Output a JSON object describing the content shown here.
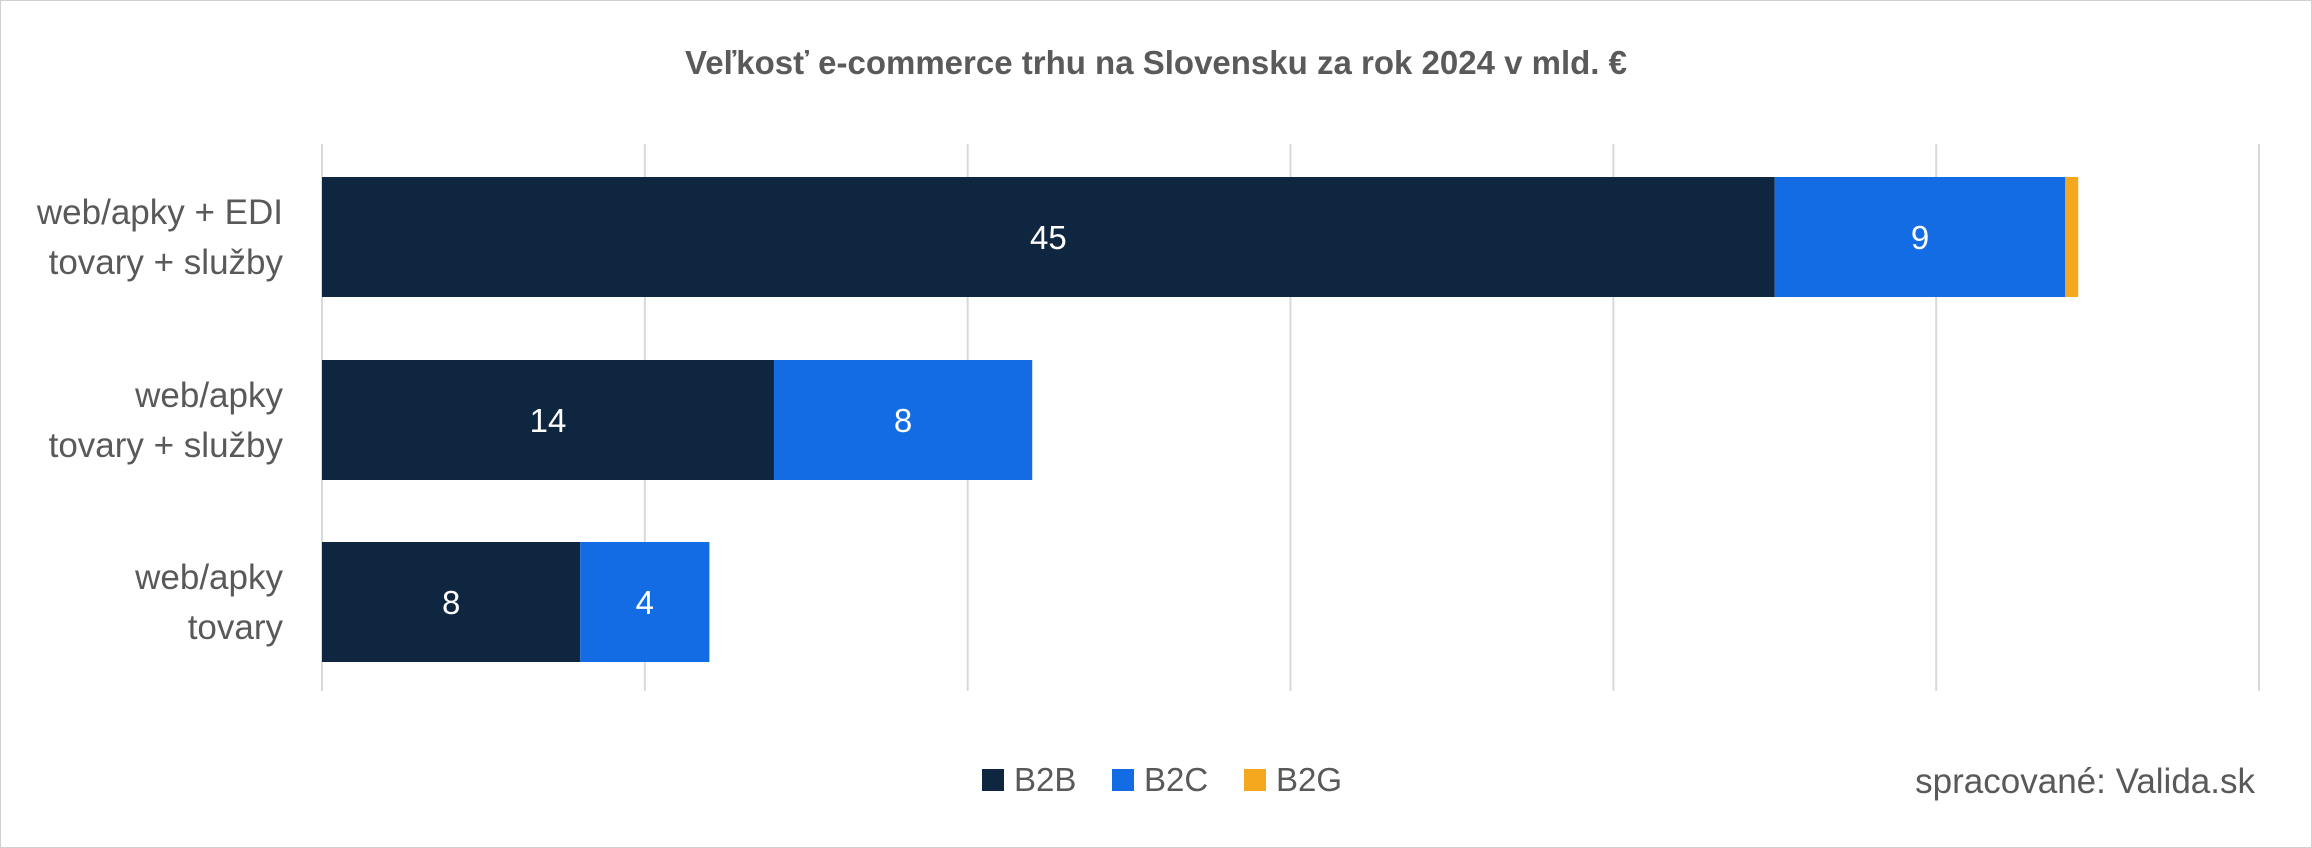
{
  "chart_data": {
    "type": "bar",
    "orientation": "horizontal",
    "stacked": true,
    "title": "Veľkosť e-commerce trhu na Slovensku za rok 2024 v mld. €",
    "categories": [
      [
        "web/apky + EDI",
        "tovary + služby"
      ],
      [
        "web/apky",
        "tovary + služby"
      ],
      [
        "web/apky",
        "tovary"
      ]
    ],
    "series": [
      {
        "name": "B2B",
        "color": "#0f2640",
        "values": [
          45,
          14,
          8
        ],
        "labels": [
          "45",
          "14",
          "8"
        ]
      },
      {
        "name": "B2C",
        "color": "#136ce4",
        "values": [
          9,
          8,
          4
        ],
        "labels": [
          "9",
          "8",
          "4"
        ]
      },
      {
        "name": "B2G",
        "color": "#f5a81d",
        "values": [
          0.4,
          0,
          0
        ],
        "labels": [
          "",
          "",
          ""
        ]
      }
    ],
    "xlim": [
      0,
      60
    ],
    "x_gridline_step": 10,
    "grid": true,
    "legend_position": "bottom"
  },
  "source_note": "spracované: Valida.sk"
}
